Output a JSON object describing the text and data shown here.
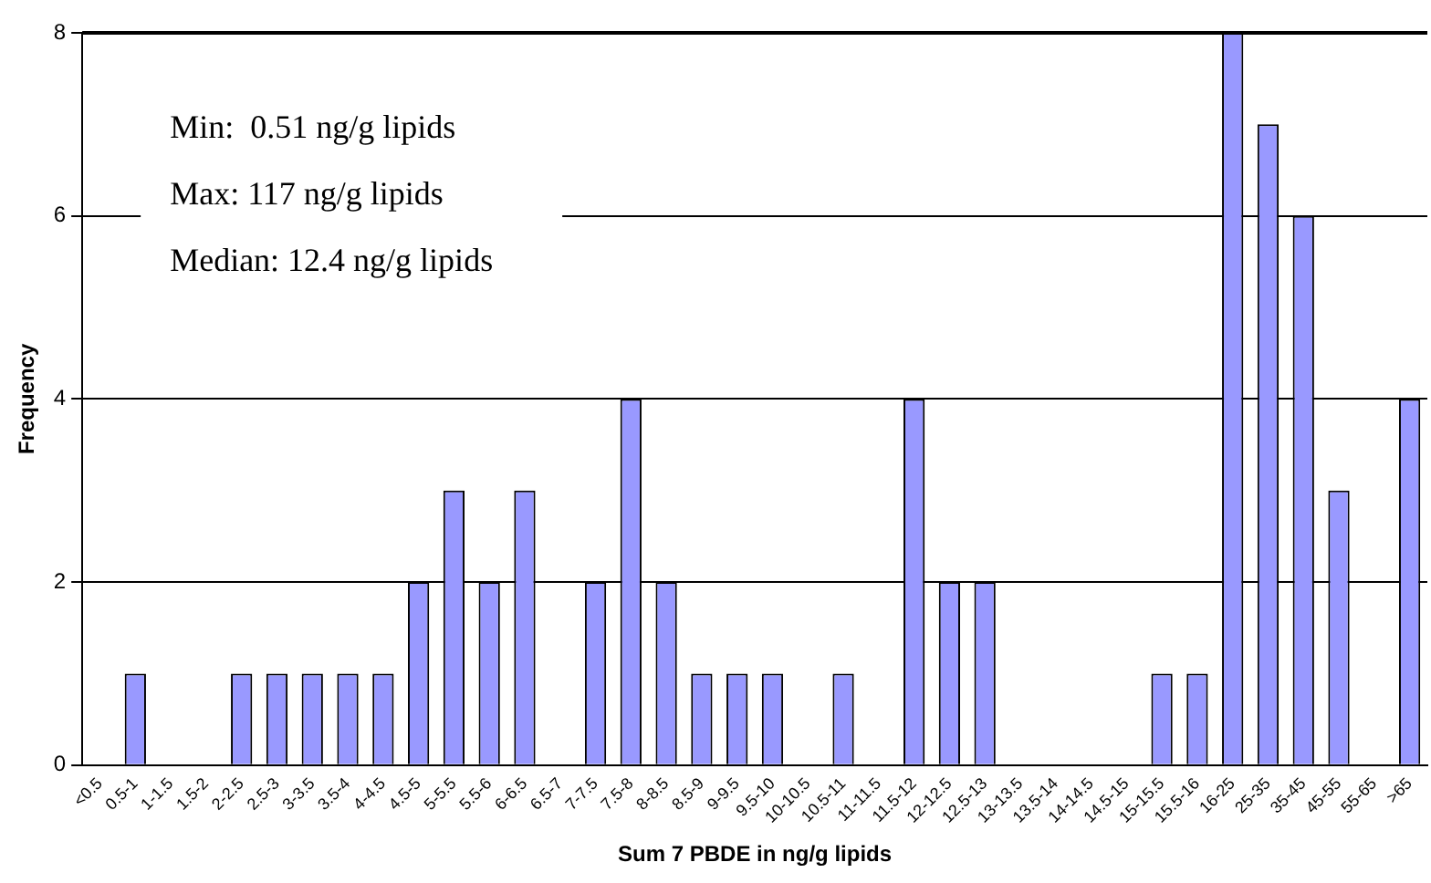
{
  "chart_data": {
    "type": "bar",
    "xlabel": "Sum 7 PBDE in ng/g lipids",
    "ylabel": "Frequency",
    "categories": [
      "<0.5",
      "0.5-1",
      "1-1.5",
      "1.5-2",
      "2-2.5",
      "2.5-3",
      "3-3.5",
      "3.5-4",
      "4-4.5",
      "4.5-5",
      "5-5.5",
      "5.5-6",
      "6-6.5",
      "6.5-7",
      "7-7.5",
      "7.5-8",
      "8-8.5",
      "8.5-9",
      "9-9.5",
      "9.5-10",
      "10-10.5",
      "10.5-11",
      "11-11.5",
      "11.5-12",
      "12-12.5",
      "12.5-13",
      "13-13.5",
      "13.5-14",
      "14-14.5",
      "14.5-15",
      "15-15.5",
      "15.5-16",
      "16-25",
      "25-35",
      "35-45",
      "45-55",
      "55-65",
      ">65"
    ],
    "values": [
      0,
      1,
      0,
      0,
      1,
      1,
      1,
      1,
      1,
      2,
      3,
      2,
      3,
      0,
      2,
      4,
      2,
      1,
      1,
      1,
      0,
      1,
      0,
      4,
      2,
      2,
      0,
      0,
      0,
      0,
      1,
      1,
      8,
      7,
      6,
      3,
      0,
      4
    ],
    "color": "#9999ff",
    "ylim": [
      0,
      8
    ],
    "yticks": [
      0,
      2,
      4,
      6,
      8
    ],
    "grid": "y",
    "legend": false,
    "annotations": [
      "Min:  0.51 ng/g lipids",
      "Max: 117 ng/g lipids",
      "Median: 12.4 ng/g lipids"
    ]
  }
}
